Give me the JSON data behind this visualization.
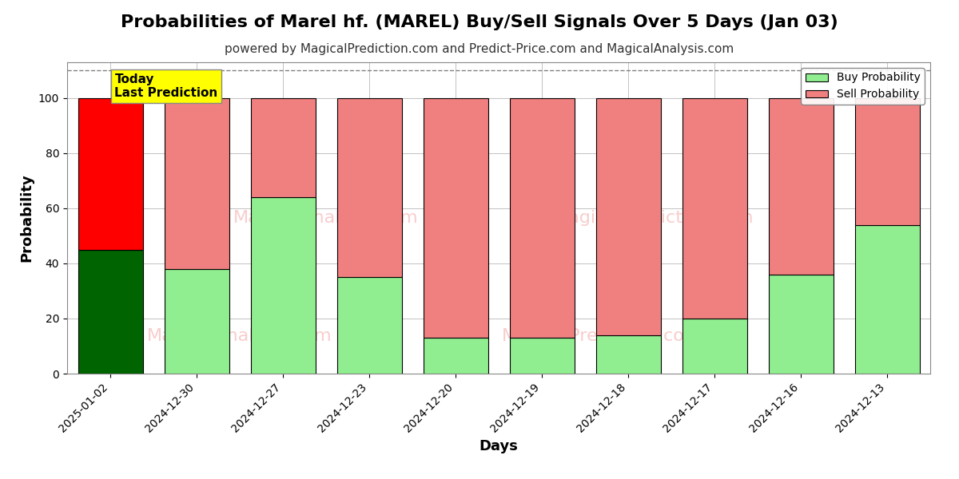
{
  "title": "Probabilities of Marel hf. (MAREL) Buy/Sell Signals Over 5 Days (Jan 03)",
  "subtitle": "powered by MagicalPrediction.com and Predict-Price.com and MagicalAnalysis.com",
  "xlabel": "Days",
  "ylabel": "Probability",
  "dates": [
    "2025-01-02",
    "2024-12-30",
    "2024-12-27",
    "2024-12-23",
    "2024-12-20",
    "2024-12-19",
    "2024-12-18",
    "2024-12-17",
    "2024-12-16",
    "2024-12-13"
  ],
  "buy_probs": [
    45,
    38,
    64,
    35,
    13,
    13,
    14,
    20,
    36,
    54
  ],
  "sell_probs": [
    55,
    62,
    36,
    65,
    87,
    87,
    86,
    80,
    64,
    46
  ],
  "today_bar_buy_color": "#006400",
  "today_bar_sell_color": "#ff0000",
  "buy_color": "#90ee90",
  "sell_color": "#f08080",
  "today_annotation_bg": "#ffff00",
  "today_annotation_text": "Today\nLast Prediction",
  "legend_buy_label": "Buy Probability",
  "legend_sell_label": "Sell Probability",
  "ylim": [
    0,
    113
  ],
  "yticks": [
    0,
    20,
    40,
    60,
    80,
    100
  ],
  "dashed_line_y": 110,
  "bar_edgecolor": "#000000",
  "bar_linewidth": 0.8,
  "bar_width": 0.75,
  "title_fontsize": 16,
  "subtitle_fontsize": 11,
  "axis_label_fontsize": 13,
  "tick_fontsize": 10,
  "grid_color": "#aaaaaa",
  "grid_linewidth": 0.5,
  "bg_color": "#ffffff",
  "watermark1": "MagicalAnalysis.com",
  "watermark2": "MagicalPrediction.com",
  "watermark_color": "#f08080",
  "watermark_alpha": 0.4,
  "watermark_fontsize": 16
}
